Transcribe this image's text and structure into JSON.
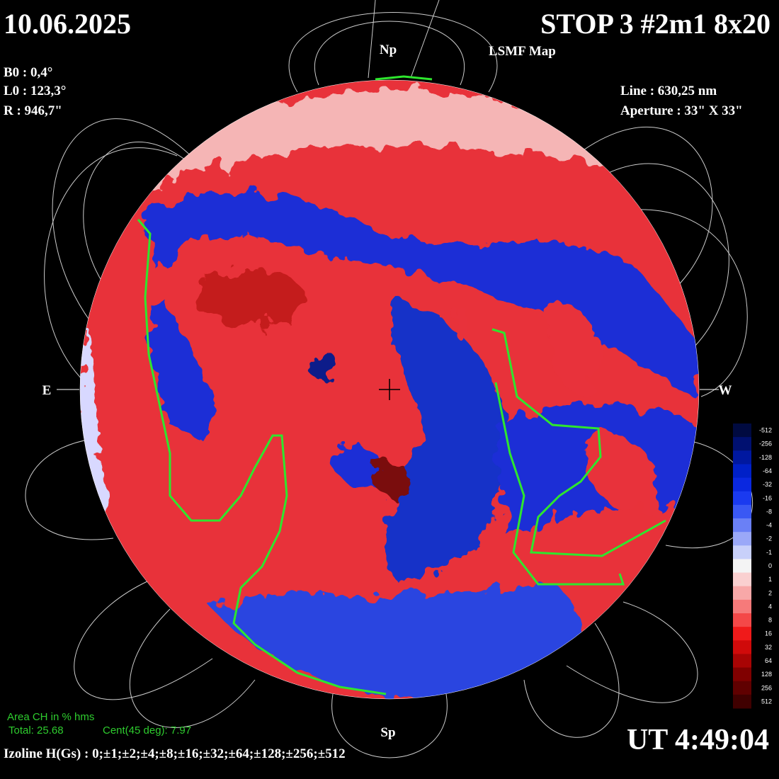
{
  "header": {
    "date": "10.06.2025",
    "title": "STOP 3 #2m1 8x20",
    "subtitle": "LSMF  Map",
    "time": "UT 4:49:04"
  },
  "params_left": [
    "B0 : 0,4°",
    "L0 : 123,3°",
    "R  : 946,7\""
  ],
  "params_right": [
    "Line :  630,25 nm",
    "Aperture : 33\" X 33\""
  ],
  "directions": {
    "north": "Np",
    "south": "Sp",
    "east": "E",
    "west": "W"
  },
  "area": {
    "title": "Area CH in % hms",
    "total": "Total: 25.68",
    "central": "Cent(45 deg): 7.97"
  },
  "isolines": "Izoline H(Gs) : 0;±1;±2;±4;±8;±16;±32;±64;±128;±256;±512",
  "colorbar": {
    "labels": [
      -512,
      -256,
      -128,
      -64,
      -32,
      -16,
      -8,
      -4,
      -2,
      -1,
      0,
      1,
      2,
      4,
      8,
      16,
      32,
      64,
      128,
      256,
      512
    ]
  }
}
